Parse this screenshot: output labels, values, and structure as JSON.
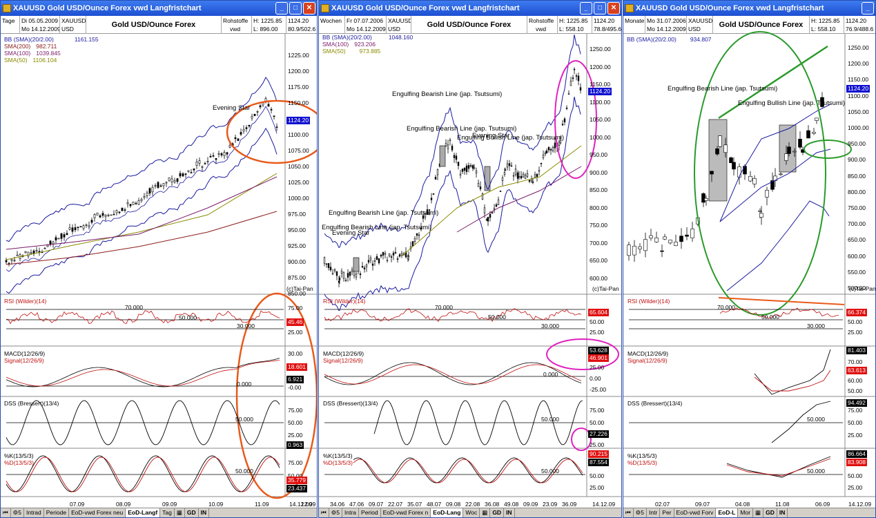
{
  "windows": [
    {
      "title": "XAUUSD Gold USD/Ounce  Forex vwd Langfristchart",
      "header": {
        "period": "Tage",
        "from": "Di 05.05.2009",
        "to": "Mo 14.12.2009",
        "symbol": "XAUUSD",
        "currency": "USD",
        "name": "Gold USD/Ounce  Forex",
        "market": "Rohstoffe",
        "market2": "vwd",
        "high": "H: 1225.85",
        "low": "L: 896.00",
        "last": "1124.20",
        "pct": "80.9/502.6"
      },
      "legend": [
        {
          "label": "BB (SMA)(20/2.00)",
          "value": "1161.155",
          "color": "#1a1aa0"
        },
        {
          "label": "SMA(200)",
          "value": "982.711",
          "color": "#8b1a1a"
        },
        {
          "label": "SMA(100)",
          "value": "1039.845",
          "color": "#7a1a6a"
        },
        {
          "label": "SMA(50)",
          "value": "1106.104",
          "color": "#8a8a00"
        }
      ],
      "yaxis": [
        "1225.00",
        "1200.00",
        "1175.00",
        "1150.00",
        "1125.00",
        "1100.00",
        "1075.00",
        "1050.00",
        "1025.00",
        "1000.00",
        "975.00",
        "950.00",
        "925.00",
        "900.00",
        "875.00",
        "850.00"
      ],
      "price_tag": "1124.20",
      "copyright": "(c)Tai-Pan",
      "annotations": [
        "Evening Star"
      ],
      "rsi": {
        "label": "RSI (Wilder)(14)",
        "l70": "70.000",
        "l50": "50.000",
        "l30": "30.000",
        "ticks": [
          "75.00",
          "50.00",
          "25.00"
        ],
        "tag": "45.46"
      },
      "macd": {
        "label": "MACD(12/26/9)",
        "signal": "Signal(12/26/9)",
        "zero": "0.000",
        "ticks": [
          "30.00",
          "20.00",
          "10.00",
          "-0.00"
        ],
        "tag1": "18.601",
        "tag2": "6.921"
      },
      "dss": {
        "label": "DSS (Bressert)(13/4)",
        "l50": "50.000",
        "ticks": [
          "75.00",
          "50.00",
          "25.00"
        ],
        "tag": "0.963"
      },
      "stoch": {
        "k": "%K(13/5/3)",
        "d": "%D(13/5/3)",
        "l50": "50.000",
        "ticks": [
          "75.00",
          "50.00",
          "25.00"
        ],
        "tag1": "35.779",
        "tag2": "23.437"
      },
      "xaxis": [
        "07.09",
        "08.09",
        "09.09",
        "10.09",
        "11.09",
        "12.09"
      ],
      "xlast": "14.12.09",
      "tabs": [
        "Intrad",
        "Periode",
        "EoD-vwd Forex neu",
        "EoD-Langf",
        "Tag"
      ]
    },
    {
      "title": "XAUUSD Gold USD/Ounce  Forex vwd Langfristchart",
      "header": {
        "period": "Wochen",
        "from": "Fr 07.07.2006",
        "to": "Mo 14.12.2009",
        "symbol": "XAUUSD",
        "currency": "USD",
        "name": "Gold USD/Ounce  Forex",
        "market": "Rohstoffe",
        "market2": "vwd",
        "high": "H: 1225.85",
        "low": "L: 558.10",
        "last": "1124.20",
        "pct": "78.8/495.6"
      },
      "legend": [
        {
          "label": "BB (SMA)(20/2.00)",
          "value": "1048.160",
          "color": "#1a1aa0"
        },
        {
          "label": "SMA(100)",
          "value": "923.206",
          "color": "#7a1a6a"
        },
        {
          "label": "SMA(50)",
          "value": "973.885",
          "color": "#8a8a00"
        }
      ],
      "yaxis": [
        "1250.00",
        "1200.00",
        "1150.00",
        "1100.00",
        "1050.00",
        "1000.00",
        "950.00",
        "900.00",
        "850.00",
        "800.00",
        "750.00",
        "700.00",
        "650.00",
        "600.00"
      ],
      "price_tag": "1124.20",
      "copyright": "(c)Tai-Pan",
      "annotations": [
        "Engulfing Bearish Line (jap. Tsutsumi)",
        "Engulfing Bearish Line (jap. Tsutsumi)",
        "Engulfing Bullish Line (jap. Tsutsumi)",
        "Evening Star",
        "Engulfing Bearish Line (jap. Tsutsumi)",
        "Engulfing Bearish Line (jap. Tsutsumi)",
        "Evening Star"
      ],
      "rsi": {
        "label": "RSI (Wilder)(14)",
        "l70": "70.000",
        "l50": "50.000",
        "l30": "30.000",
        "ticks": [
          "75.00",
          "50.00",
          "25.00"
        ],
        "tag": "65.604"
      },
      "macd": {
        "label": "MACD(12/26/9)",
        "signal": "Signal(12/26/9)",
        "zero": "0.000",
        "ticks": [
          "25.00",
          "0.00",
          "-25.00"
        ],
        "tag1": "53.628",
        "tag2": "46.901"
      },
      "dss": {
        "label": "DSS (Bressert)(13/4)",
        "l50": "50.000",
        "ticks": [
          "75.00",
          "50.00",
          "25.00"
        ],
        "tag": "27.226"
      },
      "stoch": {
        "k": "%K(13/5/3)",
        "d": "%D(13/5/3)",
        "l50": "50.000",
        "ticks": [
          "75.00",
          "50.00",
          "25.00"
        ],
        "tag1": "90.215",
        "tag2": "87.554"
      },
      "xaxis": [
        "34.06",
        "47.06",
        "09.07",
        "22.07",
        "35.07",
        "48.07",
        "09.08",
        "22.08",
        "36.08",
        "49.08",
        "09.09",
        "23.09",
        "36.09"
      ],
      "xlast": "14.12.09",
      "tabs": [
        "Intra",
        "Period",
        "EoD-vwd Forex n",
        "EoD-Lang",
        "Woc"
      ]
    },
    {
      "title": "XAUUSD Gold USD/Ounce  Forex vwd Langfristchart",
      "header": {
        "period": "Monate",
        "from": "Mo 31.07.2006",
        "to": "Mo 14.12.2009",
        "symbol": "XAUUSD",
        "currency": "USD",
        "name": "Gold USD/Ounce  Forex",
        "market": "Rohstoffe",
        "market2": "vwd",
        "high": "H: 1225.85",
        "low": "L: 558.10",
        "last": "1124.20",
        "pct": "76.9/488.6"
      },
      "legend": [
        {
          "label": "BB (SMA)(20/2.00)",
          "value": "934.807",
          "color": "#1a1aa0"
        }
      ],
      "yaxis": [
        "1250.00",
        "1200.00",
        "1150.00",
        "1100.00",
        "1050.00",
        "1000.00",
        "950.00",
        "900.00",
        "850.00",
        "800.00",
        "750.00",
        "700.00",
        "650.00",
        "600.00",
        "550.00",
        "500.00"
      ],
      "price_tag": "1124.20",
      "copyright": "(c)Tai-Pan",
      "annotations": [
        "Engulfing Bearish Line (jap. Tsutsumi)",
        "Engulfing Bullish Line (jap. Tsutsumi)"
      ],
      "rsi": {
        "label": "RSI (Wilder)(14)",
        "l70": "70.000",
        "l50": "50.000",
        "l30": "30.000",
        "ticks": [
          "75.00",
          "50.00",
          "25.00"
        ],
        "tag": "66.374"
      },
      "macd": {
        "label": "MACD(12/26/9)",
        "signal": "Signal(12/26/9)",
        "zero": "",
        "ticks": [
          "70.00",
          "60.00",
          "50.00"
        ],
        "tag1": "81.403",
        "tag2": "63.613"
      },
      "dss": {
        "label": "DSS (Bressert)(13/4)",
        "l50": "50.000",
        "ticks": [
          "75.00",
          "50.00",
          "25.00"
        ],
        "tag": "94.492"
      },
      "stoch": {
        "k": "%K(13/5/3)",
        "d": "%D(13/5/3)",
        "l50": "50.000",
        "ticks": [
          "75.00",
          "50.00",
          "25.00"
        ],
        "tag1": "86.664",
        "tag2": "83.908"
      },
      "xaxis": [
        "02.07",
        "09.07",
        "04.08",
        "11.08",
        "06.09"
      ],
      "xlast": "14.12.09",
      "tabs": [
        "Intr",
        "Per",
        "EoD-vwd Forv",
        "EoD-L",
        "Mor"
      ]
    }
  ],
  "bottom_icons": {
    "gd": "GD",
    "in": "IN",
    "l": "L"
  },
  "colors": {
    "titlebar": "#2a5ad8",
    "price_tag": "#1010d0",
    "red_tag": "#e01010",
    "black_tag": "#000000",
    "orange_markup": "#e85a1a",
    "magenta_markup": "#e020c0",
    "green_markup": "#2a9a2a"
  }
}
